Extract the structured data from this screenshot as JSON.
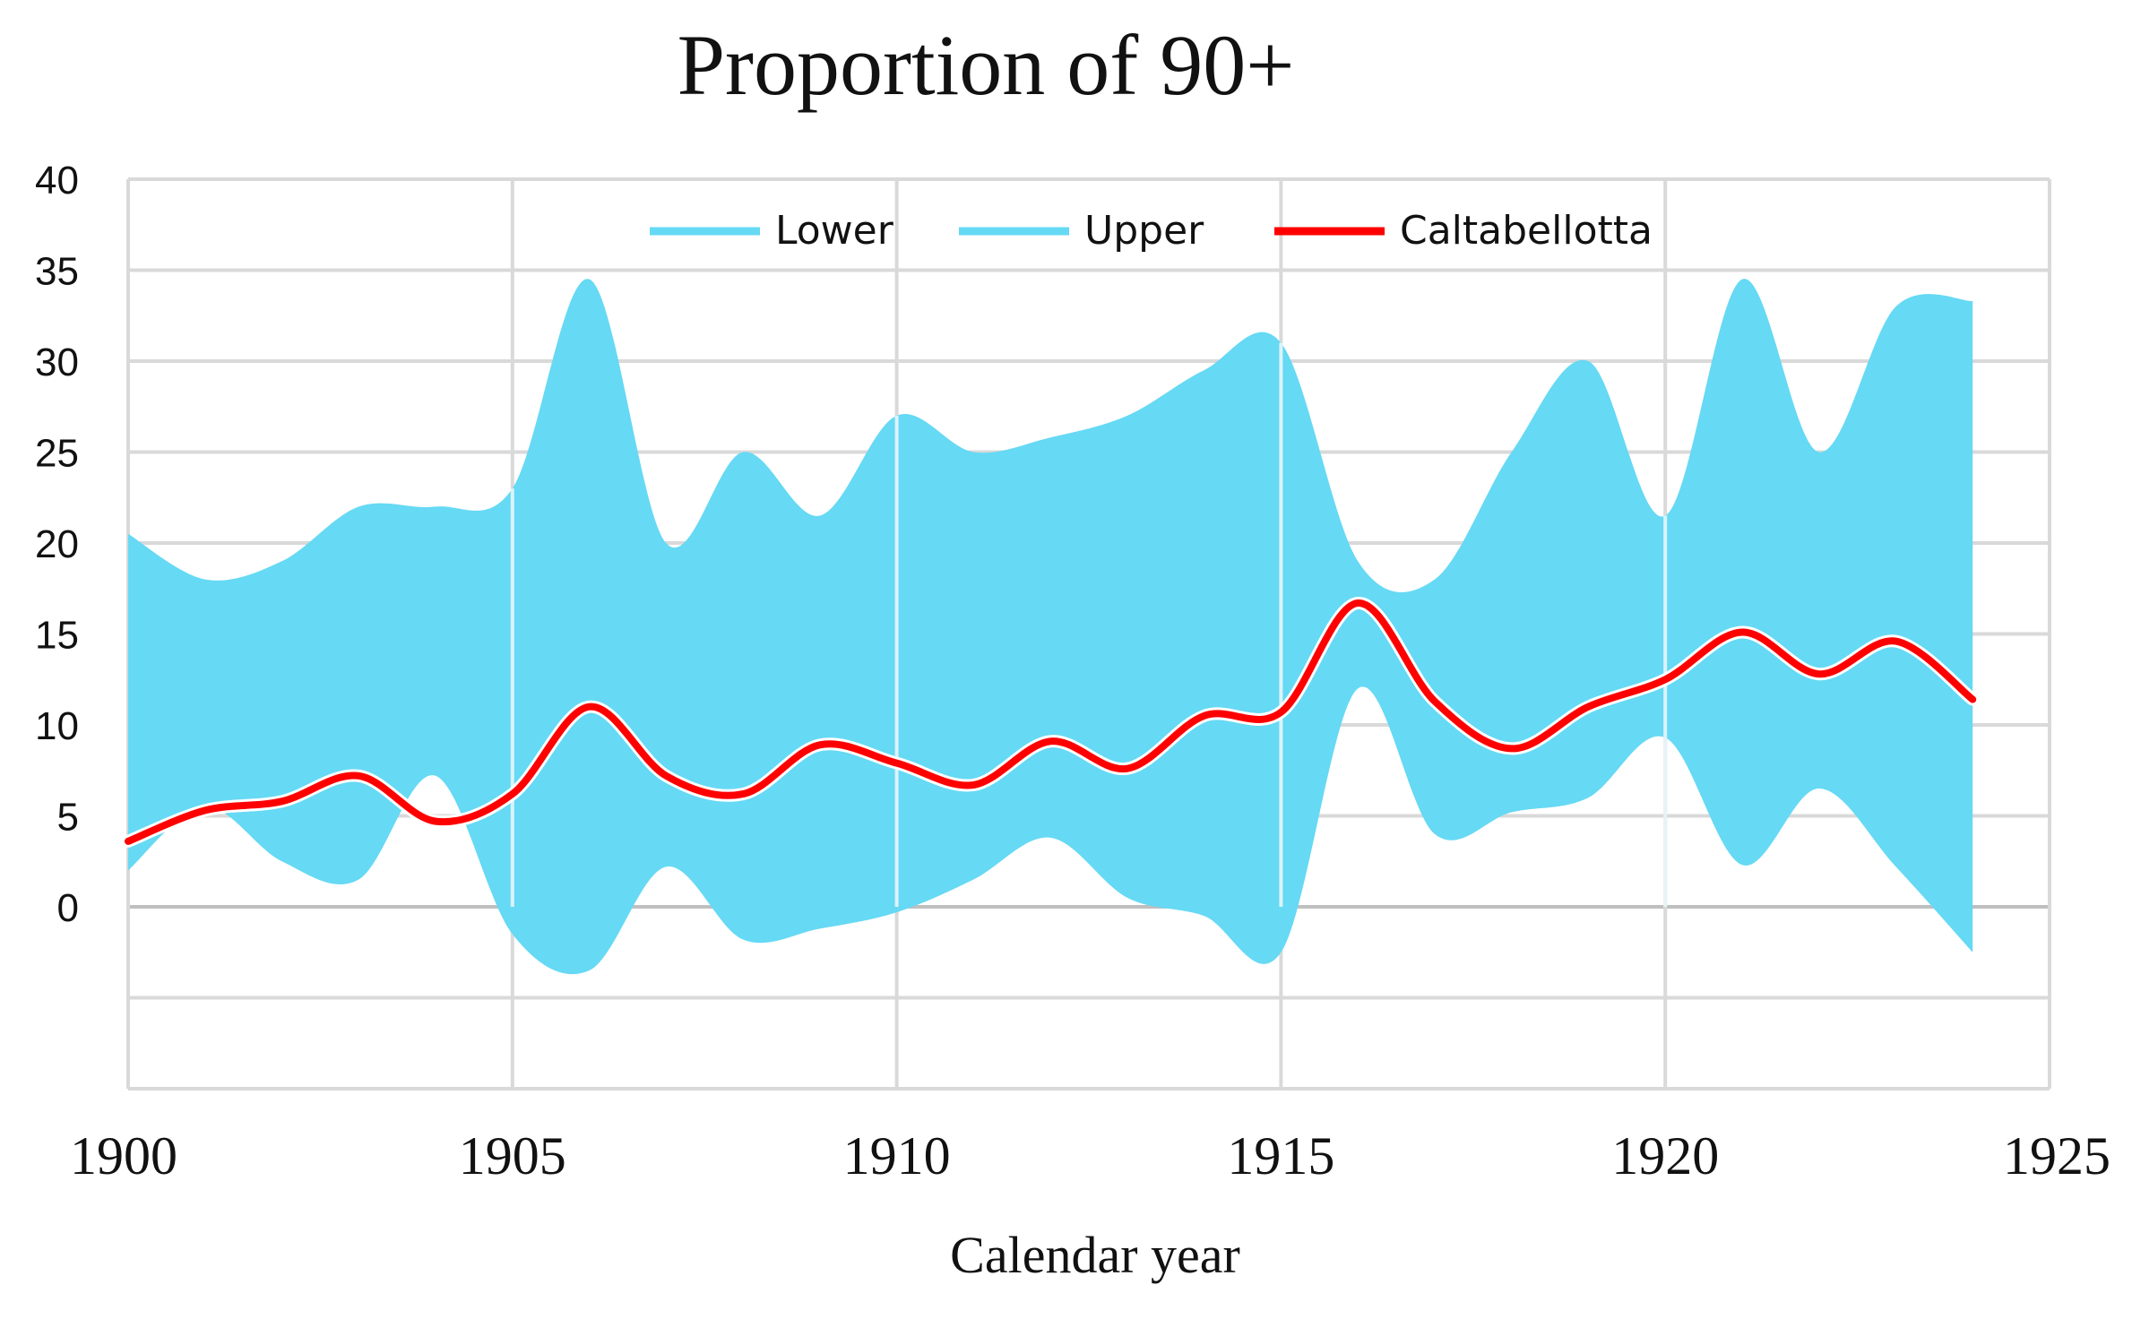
{
  "chart_data": {
    "type": "area",
    "title": "Proportion of 90+",
    "xlabel": "Calendar year",
    "ylabel": "",
    "xlim": [
      1900,
      1925
    ],
    "ylim": [
      -10,
      40
    ],
    "x_ticks": [
      1900,
      1905,
      1910,
      1915,
      1920,
      1925
    ],
    "x_tick_labels": [
      "1900",
      "1905",
      "1910",
      "1915",
      "1920",
      "1925"
    ],
    "y_ticks": [
      40,
      35,
      30,
      25,
      20,
      15,
      10,
      5,
      0
    ],
    "y_tick_labels": [
      "40",
      "35",
      "30",
      "25",
      "20",
      "15",
      "10",
      "5",
      "0"
    ],
    "y_gridlines": [
      40,
      35,
      30,
      25,
      20,
      15,
      10,
      5,
      0,
      -5,
      -10
    ],
    "grid": true,
    "legend_position": "top-center",
    "colors": {
      "band": "#66d9f4",
      "line": "#ff0000",
      "grid": "#d9d9d9",
      "zero_line": "#bfbfbf"
    },
    "x": [
      1900,
      1901,
      1902,
      1903,
      1904,
      1905,
      1906,
      1907,
      1908,
      1909,
      1910,
      1911,
      1912,
      1913,
      1914,
      1915,
      1916,
      1917,
      1918,
      1919,
      1920,
      1921,
      1922,
      1923,
      1924
    ],
    "series": [
      {
        "name": "Lower",
        "values": [
          2,
          5.5,
          2.5,
          1.5,
          7.2,
          -1.5,
          -3.5,
          2.2,
          -1.8,
          -1.2,
          -0.3,
          1.5,
          3.8,
          0.5,
          -0.5,
          -2.5,
          12,
          4,
          5.2,
          6,
          9.3,
          2.3,
          6.5,
          2.2,
          -2.5
        ]
      },
      {
        "name": "Upper",
        "values": [
          20.5,
          18,
          19,
          22,
          22,
          23,
          34.5,
          20,
          25,
          21.5,
          27,
          25,
          25.8,
          27,
          29.5,
          31,
          19,
          18,
          25,
          30,
          21.5,
          34.5,
          25,
          33,
          33.3
        ]
      },
      {
        "name": "Caltabellotta",
        "values": [
          3.6,
          5.3,
          5.8,
          7.2,
          4.7,
          6.2,
          11,
          7.2,
          6.2,
          8.9,
          7.9,
          6.7,
          9.1,
          7.6,
          10.5,
          10.7,
          16.7,
          11.3,
          8.7,
          11,
          12.5,
          15.1,
          12.8,
          14.6,
          11.4
        ]
      }
    ]
  }
}
